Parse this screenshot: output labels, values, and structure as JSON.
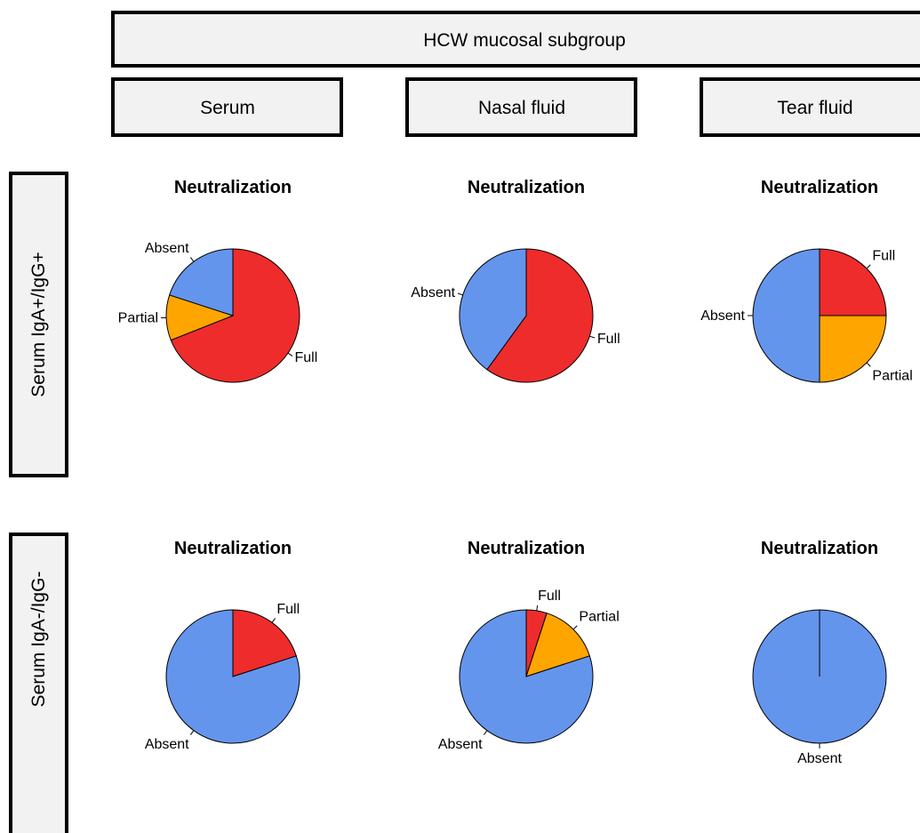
{
  "header": {
    "title": "HCW mucosal subgroup"
  },
  "columns": [
    "Serum",
    "Nasal fluid",
    "Tear fluid"
  ],
  "rows": [
    "Serum IgA+/IgG+",
    "Serum IgA-/IgG-"
  ],
  "colors": {
    "Full": "#ee2c2c",
    "Partial": "#ffa500",
    "Absent": "#6495ed"
  },
  "chart_data": [
    {
      "type": "pie",
      "title": "Neutralization",
      "row": "Serum IgA+/IgG+",
      "column": "Serum",
      "labels": [
        "Full",
        "Partial",
        "Absent"
      ],
      "values": [
        69,
        11,
        20
      ]
    },
    {
      "type": "pie",
      "title": "Neutralization",
      "row": "Serum IgA+/IgG+",
      "column": "Nasal fluid",
      "labels": [
        "Full",
        "Absent"
      ],
      "values": [
        60,
        40
      ]
    },
    {
      "type": "pie",
      "title": "Neutralization",
      "row": "Serum IgA+/IgG+",
      "column": "Tear fluid",
      "labels": [
        "Full",
        "Partial",
        "Absent"
      ],
      "values": [
        25,
        25,
        50
      ]
    },
    {
      "type": "pie",
      "title": "Neutralization",
      "row": "Serum IgA-/IgG-",
      "column": "Serum",
      "labels": [
        "Full",
        "Absent"
      ],
      "values": [
        20,
        80
      ]
    },
    {
      "type": "pie",
      "title": "Neutralization",
      "row": "Serum IgA-/IgG-",
      "column": "Nasal fluid",
      "labels": [
        "Full",
        "Partial",
        "Absent"
      ],
      "values": [
        5,
        15,
        80
      ]
    },
    {
      "type": "pie",
      "title": "Neutralization",
      "row": "Serum IgA-/IgG-",
      "column": "Tear fluid",
      "labels": [
        "Absent"
      ],
      "values": [
        100
      ]
    }
  ]
}
